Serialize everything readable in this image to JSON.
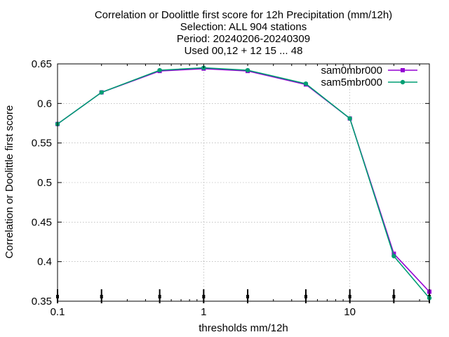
{
  "chart_data": {
    "type": "line",
    "title_lines": [
      "Correlation or Doolittle first score  for 12h Precipitation (mm/12h)",
      "Selection: ALL    904 stations",
      "Period: 20240206-20240309",
      "Used 00,12 + 12 15 ... 48"
    ],
    "xlabel": "thresholds mm/12h",
    "ylabel": "Correlation or Doolittle first score",
    "xscale": "log",
    "xlim": [
      0.1,
      35
    ],
    "ylim": [
      0.35,
      0.65
    ],
    "x_ticks": [
      0.1,
      1,
      10
    ],
    "x_tick_labels": [
      "0.1",
      "1",
      "10"
    ],
    "y_ticks": [
      0.35,
      0.4,
      0.45,
      0.5,
      0.55,
      0.6,
      0.65
    ],
    "y_tick_labels": [
      "0.35",
      "0.4",
      "0.45",
      "0.5",
      "0.55",
      "0.6",
      "0.65"
    ],
    "grid": true,
    "legend_position": "top-right",
    "x": [
      0.1,
      0.2,
      0.5,
      1,
      2,
      5,
      10,
      20,
      35
    ],
    "series": [
      {
        "name": "sam0mbr000",
        "color": "#9400d3",
        "values": [
          0.574,
          0.614,
          0.641,
          0.644,
          0.641,
          0.624,
          0.581,
          0.41,
          0.362
        ]
      },
      {
        "name": "sam5mbr000",
        "color": "#009e73",
        "values": [
          0.574,
          0.614,
          0.642,
          0.645,
          0.642,
          0.625,
          0.581,
          0.407,
          0.354
        ]
      }
    ],
    "threshold_markers": [
      0.1,
      0.2,
      0.5,
      1,
      2,
      5,
      10,
      20,
      35
    ]
  }
}
